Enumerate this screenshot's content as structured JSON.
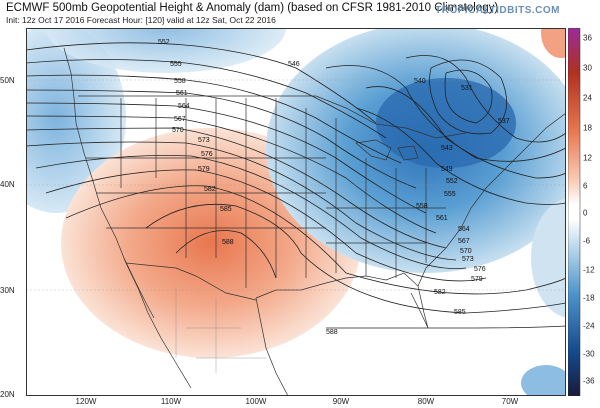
{
  "header": {
    "title": "ECMWF 500mb Geopotential Height & Anomaly (dam) (based on CFSR 1981-2010 Climatology)",
    "subtitle": "Init: 12z Oct 17 2016   Forecast Hour: [120]   valid at 12z Sat, Oct 22 2016",
    "brand": "TROPICALTIDBITS.COM"
  },
  "axes": {
    "lat_labels": [
      "50N",
      "40N",
      "30N",
      "20N"
    ],
    "lon_labels": [
      "120W",
      "110W",
      "100W",
      "90W",
      "80W",
      "70W"
    ]
  },
  "colorbar": {
    "labels": [
      "36",
      "30",
      "24",
      "18",
      "12",
      "6",
      "0",
      "-6",
      "-12",
      "-18",
      "-24",
      "-30",
      "-36"
    ],
    "colors": {
      "top": "#9b2a9b",
      "warm_dark": "#b03020",
      "warm_mid": "#e8774f",
      "warm_light": "#f9d0bb",
      "zero": "#ffffff",
      "cool_light": "#c8e0f0",
      "cool_mid": "#4f95cc",
      "cool_dark": "#144a8c",
      "bottom": "#1a1a3a"
    }
  },
  "contours": {
    "labels": [
      "552",
      "555",
      "558",
      "561",
      "564",
      "567",
      "570",
      "573",
      "576",
      "579",
      "582",
      "585",
      "588",
      "546",
      "540",
      "531",
      "537",
      "543",
      "549",
      "552",
      "555",
      "558",
      "561",
      "564",
      "567",
      "570",
      "573",
      "576",
      "579",
      "582",
      "585",
      "588"
    ]
  }
}
